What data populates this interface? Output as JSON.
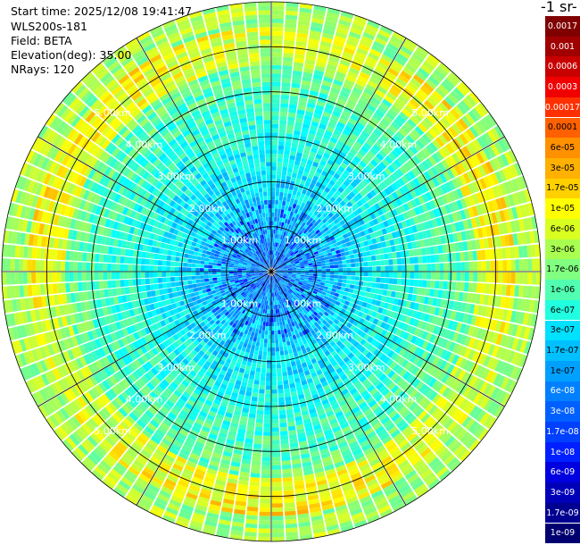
{
  "header": {
    "start_time": "Start time: 2025/12/08 19:41:47",
    "instrument": "WLS200s-181",
    "field": "Field: BETA",
    "elevation": "Elevation(deg): 35.00",
    "nrays": "NRays: 120"
  },
  "colorbar": {
    "unit_title_visible": "-1 sr-",
    "labels_top_to_bottom": [
      "0.0017",
      "0.001",
      "0.0006",
      "0.0003",
      "0.00017",
      "0.0001",
      "6e-05",
      "3e-05",
      "1.7e-05",
      "1e-05",
      "6e-06",
      "3e-06",
      "1.7e-06",
      "1e-06",
      "6e-07",
      "3e-07",
      "1.7e-07",
      "1e-07",
      "6e-08",
      "3e-08",
      "1.7e-08",
      "1e-08",
      "6e-09",
      "3e-09",
      "1.7e-09",
      "1e-09"
    ],
    "colors_top_to_bottom": [
      "#800000",
      "#a00000",
      "#c80000",
      "#f00000",
      "#ff3000",
      "#ff6000",
      "#ff9000",
      "#ffb000",
      "#ffd000",
      "#ffff00",
      "#d8ff20",
      "#a8ff50",
      "#80ff80",
      "#50ffb0",
      "#20ffe0",
      "#00e0ff",
      "#00c0ff",
      "#00a0ff",
      "#0080ff",
      "#0060ff",
      "#0040ff",
      "#0020ff",
      "#0000e0",
      "#0000b8",
      "#000090",
      "#000070"
    ]
  },
  "chart_data": {
    "type": "heatmap",
    "projection": "polar PPI",
    "nrays": 120,
    "range_ring_labels_km": [
      1,
      2,
      3,
      4,
      5
    ],
    "ring_labels": [
      "1.00km",
      "2.00km",
      "3.00km",
      "4.00km",
      "5.00km"
    ],
    "max_range_km": 6.0,
    "grid": true,
    "colormap": "jet",
    "field": "BETA",
    "dominant_colors": [
      "#0000ff",
      "#0050ff",
      "#00a0ff",
      "#20ffe0",
      "#80ff80"
    ]
  }
}
